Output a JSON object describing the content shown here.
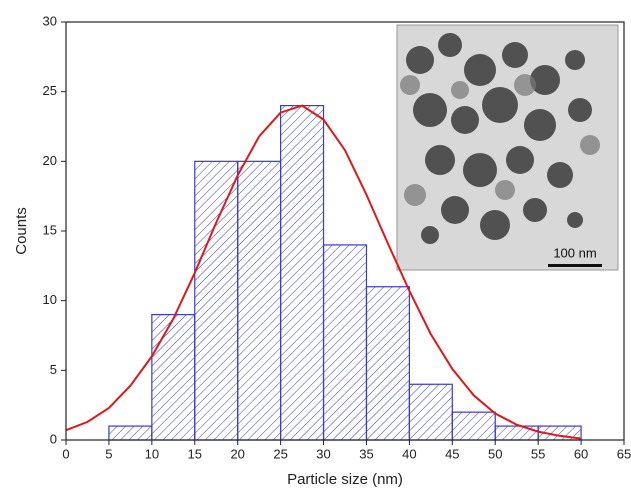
{
  "chart_data": {
    "type": "histogram",
    "xlabel": "Particle size (nm)",
    "ylabel": "Counts",
    "bins": [
      5,
      10,
      15,
      20,
      25,
      30,
      35,
      40,
      45,
      50,
      55,
      60
    ],
    "values": [
      1,
      9,
      20,
      20,
      24,
      14,
      11,
      4,
      2,
      1,
      1
    ],
    "color": "#3a3acc",
    "fit": {
      "color": "#e01818",
      "x": [
        0,
        2.5,
        5,
        7.5,
        10,
        12.5,
        15,
        17.5,
        20,
        22.5,
        25,
        27.5,
        30,
        32.5,
        35,
        37.5,
        40,
        42.5,
        45,
        47.5,
        50,
        52.5,
        55,
        57.5,
        60
      ],
      "values": [
        0.7,
        1.3,
        2.3,
        3.9,
        6.0,
        8.7,
        12.0,
        15.6,
        19.0,
        21.8,
        23.5,
        24.0,
        23.0,
        20.8,
        17.6,
        14.1,
        10.7,
        7.6,
        5.1,
        3.2,
        1.9,
        1.1,
        0.6,
        0.3,
        0.1
      ]
    },
    "xlim": [
      0,
      65
    ],
    "ylim": [
      0,
      30
    ],
    "xticks": [
      0,
      5,
      10,
      15,
      20,
      25,
      30,
      35,
      40,
      45,
      50,
      55,
      60,
      65
    ],
    "yticks": [
      0,
      5,
      10,
      15,
      20,
      25,
      30
    ],
    "inset_label": "100 nm"
  }
}
